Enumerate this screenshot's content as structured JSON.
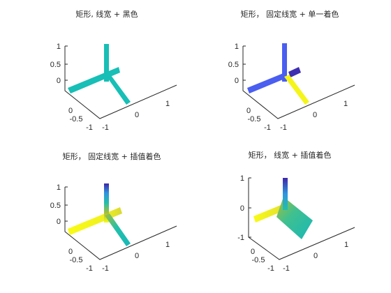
{
  "chart_data": [
    {
      "type": "3d-patch",
      "title": "矩形, 线宽 + 黑色",
      "zlim": [
        0,
        1
      ],
      "ticks": {
        "z": [
          "1",
          "0.5",
          "0"
        ],
        "y": [
          "0",
          "-0.5",
          "-1"
        ],
        "x": [
          "-1",
          "0",
          "1"
        ]
      },
      "coloring": "single",
      "colors": {
        "single": "#17bfb6"
      },
      "patches": [
        {
          "name": "vertical-strip",
          "color": "#17bfb6"
        },
        {
          "name": "horizontal-strip",
          "color": "#17bfb6"
        },
        {
          "name": "diagonal-strip",
          "color": "#17bfb6"
        }
      ]
    },
    {
      "type": "3d-patch",
      "title": "矩形， 固定线宽 + 单一着色",
      "zlim": [
        0,
        1
      ],
      "ticks": {
        "z": [
          "1",
          "0.5",
          "0"
        ],
        "y": [
          "0",
          "-0.5",
          "-1"
        ],
        "x": [
          "-1",
          "0",
          "1"
        ]
      },
      "coloring": "flat-per-face",
      "patches": [
        {
          "name": "vertical-strip",
          "color": "#4a5ef0"
        },
        {
          "name": "horizontal-strip-front",
          "color": "#4a5ef0"
        },
        {
          "name": "horizontal-strip-back",
          "color": "#3d2fb0"
        },
        {
          "name": "diagonal-strip",
          "color": "#f5f51a"
        }
      ]
    },
    {
      "type": "3d-patch",
      "title": "矩形， 固定线宽 + 插值着色",
      "zlim": [
        0,
        1
      ],
      "ticks": {
        "z": [
          "1",
          "0.5",
          "0"
        ],
        "y": [
          "0",
          "-0.5",
          "-1"
        ],
        "x": [
          "-1",
          "0",
          "1"
        ]
      },
      "coloring": "interpolated",
      "colormap": [
        "#3e26a8",
        "#2f96e1",
        "#22c0aa",
        "#a6be3a",
        "#f9fb15"
      ],
      "patches": [
        {
          "name": "vertical-strip"
        },
        {
          "name": "horizontal-strip"
        },
        {
          "name": "diagonal-strip"
        }
      ]
    },
    {
      "type": "3d-patch",
      "title": "矩形， 线宽 + 插值着色",
      "zlim": [
        -1,
        1
      ],
      "ticks": {
        "z": [
          "1",
          "0",
          "-1"
        ],
        "y": [
          "0",
          "-0.5",
          "-1"
        ],
        "x": [
          "-1",
          "0",
          "1"
        ]
      },
      "coloring": "interpolated",
      "colormap": [
        "#3e26a8",
        "#2f96e1",
        "#22c0aa",
        "#a6be3a",
        "#f9fb15"
      ],
      "patches": [
        {
          "name": "vertical-strip"
        },
        {
          "name": "horizontal-strip"
        },
        {
          "name": "tilted-plane"
        }
      ]
    }
  ]
}
